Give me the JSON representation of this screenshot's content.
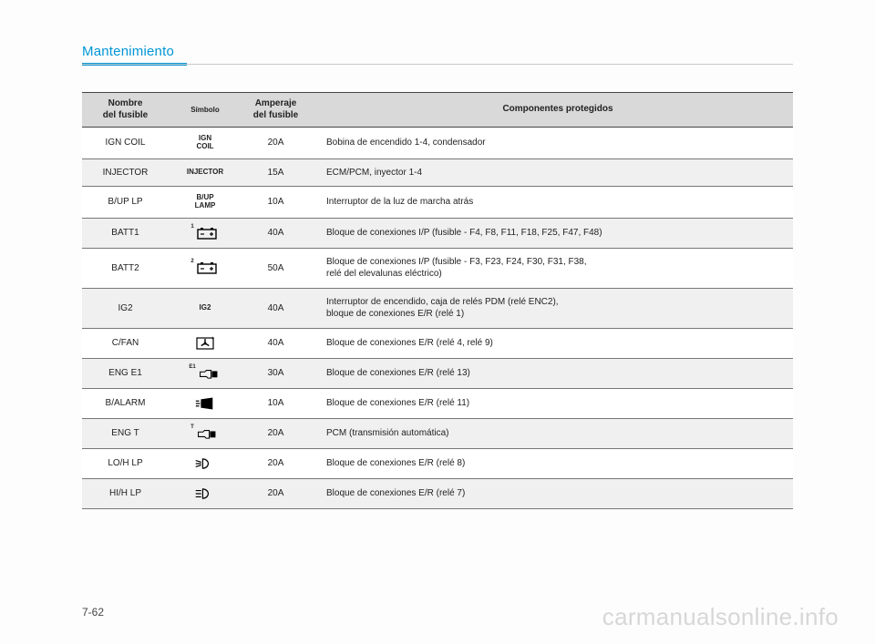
{
  "header": {
    "section_title": "Mantenimiento"
  },
  "table": {
    "columns": {
      "name": "Nombre\ndel fusible",
      "symbol": "Símbolo",
      "amp": "Amperaje\ndel fusible",
      "desc": "Componentes protegidos"
    },
    "rows": [
      {
        "name": "IGN COIL",
        "symbol_text": "IGN\nCOIL",
        "symbol_kind": "text",
        "amp": "20A",
        "desc": "Bobina de encendido 1-4, condensador"
      },
      {
        "name": "INJECTOR",
        "symbol_text": "INJECTOR",
        "symbol_kind": "text",
        "amp": "15A",
        "desc": "ECM/PCM, inyector 1-4"
      },
      {
        "name": "B/UP LP",
        "symbol_text": "B/UP\nLAMP",
        "symbol_kind": "text",
        "amp": "10A",
        "desc": "Interruptor de la luz de marcha atrás"
      },
      {
        "name": "BATT1",
        "symbol_text": "",
        "symbol_kind": "battery",
        "symbol_sup": "1",
        "amp": "40A",
        "desc": "Bloque de conexiones I/P (fusible - F4, F8, F11, F18, F25, F47, F48)"
      },
      {
        "name": "BATT2",
        "symbol_text": "",
        "symbol_kind": "battery",
        "symbol_sup": "2",
        "amp": "50A",
        "desc": "Bloque de conexiones I/P (fusible - F3, F23, F24, F30, F31, F38,\nrelé del elevalunas eléctrico)"
      },
      {
        "name": "IG2",
        "symbol_text": "IG2",
        "symbol_kind": "text",
        "amp": "40A",
        "desc": "Interruptor de encendido, caja de relés PDM (relé ENC2),\nbloque de conexiones E/R (relé 1)"
      },
      {
        "name": "C/FAN",
        "symbol_text": "",
        "symbol_kind": "fan",
        "amp": "40A",
        "desc": "Bloque de conexiones E/R (relé 4, relé 9)"
      },
      {
        "name": "ENG E1",
        "symbol_text": "",
        "symbol_kind": "engine",
        "symbol_sup": "E1",
        "amp": "30A",
        "desc": "Bloque de conexiones E/R (relé 13)"
      },
      {
        "name": "B/ALARM",
        "symbol_text": "",
        "symbol_kind": "horn",
        "amp": "10A",
        "desc": "Bloque de conexiones E/R (relé 11)"
      },
      {
        "name": "ENG T",
        "symbol_text": "",
        "symbol_kind": "engine",
        "symbol_sup": "T",
        "amp": "20A",
        "desc": "PCM (transmisión automática)"
      },
      {
        "name": "LO/H LP",
        "symbol_text": "",
        "symbol_kind": "lowbeam",
        "amp": "20A",
        "desc": "Bloque de conexiones E/R (relé 8)"
      },
      {
        "name": "HI/H LP",
        "symbol_text": "",
        "symbol_kind": "highbeam",
        "amp": "20A",
        "desc": "Bloque de conexiones E/R (relé 7)"
      }
    ]
  },
  "footer": {
    "page_number": "7-62",
    "watermark": "carmanualsonline.info"
  },
  "style": {
    "accent_color": "#0096d6",
    "header_bg": "#d9d9d9",
    "row_alt_bg": "#f0f0f0",
    "border_color": "#777777",
    "text_color": "#222222",
    "watermark_color": "#d7d7d7"
  }
}
